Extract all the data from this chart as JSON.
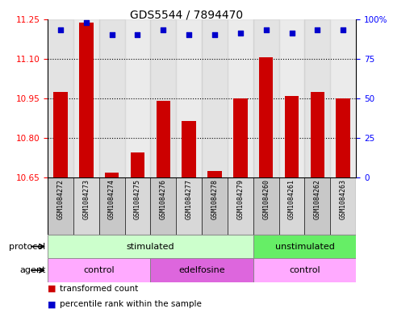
{
  "title": "GDS5544 / 7894470",
  "samples": [
    "GSM1084272",
    "GSM1084273",
    "GSM1084274",
    "GSM1084275",
    "GSM1084276",
    "GSM1084277",
    "GSM1084278",
    "GSM1084279",
    "GSM1084260",
    "GSM1084261",
    "GSM1084262",
    "GSM1084263"
  ],
  "transformed_count": [
    10.975,
    11.235,
    10.67,
    10.745,
    10.94,
    10.865,
    10.675,
    10.95,
    11.105,
    10.96,
    10.975,
    10.95
  ],
  "percentile_rank": [
    93,
    98,
    90,
    90,
    93,
    90,
    90,
    91,
    93,
    91,
    93,
    93
  ],
  "ylim_left": [
    10.65,
    11.25
  ],
  "ylim_right": [
    0,
    100
  ],
  "yticks_left": [
    10.65,
    10.8,
    10.95,
    11.1,
    11.25
  ],
  "yticks_right": [
    0,
    25,
    50,
    75,
    100
  ],
  "yticklabels_right": [
    "0",
    "25",
    "50",
    "75",
    "100%"
  ],
  "bar_color": "#cc0000",
  "dot_color": "#0000cc",
  "protocol_groups": [
    {
      "label": "stimulated",
      "start": 0,
      "end": 7,
      "light_color": "#ccffcc",
      "dark_color": "#66dd66"
    },
    {
      "label": "unstimulated",
      "start": 8,
      "end": 11,
      "light_color": "#66dd66",
      "dark_color": "#44bb44"
    }
  ],
  "agent_groups": [
    {
      "label": "control",
      "start": 0,
      "end": 3,
      "color": "#ffaaff"
    },
    {
      "label": "edelfosine",
      "start": 4,
      "end": 7,
      "color": "#dd66dd"
    },
    {
      "label": "control",
      "start": 8,
      "end": 11,
      "color": "#ffaaff"
    }
  ],
  "legend_items": [
    {
      "label": "transformed count",
      "color": "#cc0000"
    },
    {
      "label": "percentile rank within the sample",
      "color": "#0000cc"
    }
  ],
  "bg_color": "#ffffff",
  "bar_width": 0.55,
  "title_fontsize": 10,
  "label_fontsize": 8,
  "tick_fontsize": 7.5,
  "sample_fontsize": 6,
  "row_fontsize": 8,
  "legend_fontsize": 7.5,
  "col_colors": [
    "#c8c8c8",
    "#d8d8d8"
  ]
}
